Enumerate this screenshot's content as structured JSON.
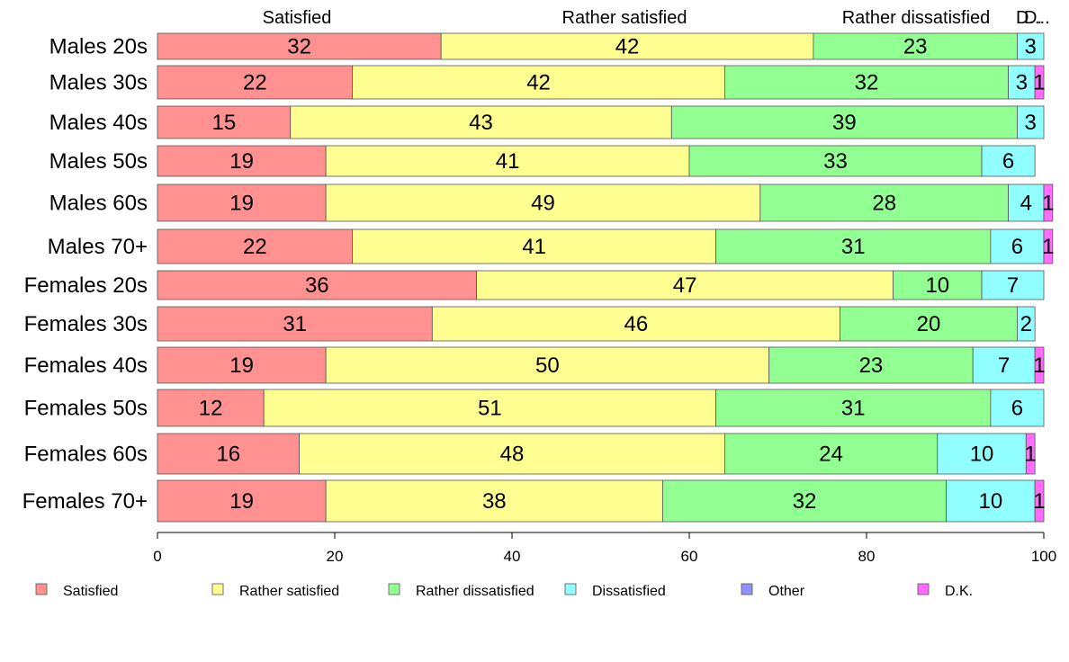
{
  "chart_data": {
    "type": "bar",
    "orientation": "horizontal",
    "stacked": true,
    "title": "",
    "xlabel": "",
    "ylabel": "",
    "xlim": [
      0,
      100
    ],
    "x_ticks": [
      0,
      20,
      40,
      60,
      80,
      100
    ],
    "grid": false,
    "legend_position": "bottom",
    "top_labels": [
      "Satisfied",
      "Rather satisfied",
      "Rather dissatisfied",
      "D.",
      "D.",
      "..."
    ],
    "categories": [
      "Males 20s",
      "Males 30s",
      "Males 40s",
      "Males 50s",
      "Males 60s",
      "Males 70+",
      "Females 20s",
      "Females 30s",
      "Females 40s",
      "Females 50s",
      "Females 60s",
      "Females 70+"
    ],
    "series": [
      {
        "name": "Satisfied",
        "color": "#FF9191",
        "values": [
          32,
          22,
          15,
          19,
          19,
          22,
          36,
          31,
          19,
          12,
          16,
          19
        ],
        "display_labels": [
          "32",
          "22",
          "15",
          "19",
          "19",
          "22",
          "36",
          "31",
          "19",
          "12",
          "16",
          "19"
        ]
      },
      {
        "name": "Rather satisfied",
        "color": "#FFFF91",
        "values": [
          42,
          42,
          43,
          41,
          49,
          41,
          47,
          46,
          50,
          51,
          48,
          38
        ],
        "display_labels": [
          "42",
          "42",
          "43",
          "41",
          "49",
          "41",
          "47",
          "46",
          "50",
          "51",
          "48",
          "38"
        ]
      },
      {
        "name": "Rather dissatisfied",
        "color": "#91FF91",
        "values": [
          23,
          32,
          39,
          33,
          28,
          31,
          10,
          20,
          23,
          31,
          24,
          32
        ],
        "display_labels": [
          "23",
          "32",
          "39",
          "33",
          "28",
          "31",
          "10",
          "20",
          "23",
          "31",
          "24",
          "32"
        ]
      },
      {
        "name": "Dissatisfied",
        "color": "#91FFFF",
        "values": [
          3,
          3,
          3,
          6,
          4,
          6,
          7,
          2,
          7,
          6,
          10,
          10
        ],
        "display_labels": [
          "3",
          "3",
          "3",
          "6",
          "4",
          "6",
          "7",
          "2",
          "7",
          "6",
          "10",
          "10"
        ]
      },
      {
        "name": "Other",
        "color": "#9191FF",
        "values": [
          0,
          0,
          0,
          0,
          0,
          0,
          0,
          0,
          0,
          0,
          0,
          0
        ],
        "display_labels": [
          "",
          "",
          "",
          "",
          "",
          "",
          "",
          "",
          "",
          "",
          "",
          ""
        ]
      },
      {
        "name": "D.K.",
        "color": "#FF6BFF",
        "values": [
          0,
          1,
          0,
          0,
          1,
          1,
          0,
          0,
          1,
          0,
          1,
          1
        ],
        "display_labels": [
          "",
          "1",
          "",
          "",
          "1",
          "1",
          "",
          "",
          "1",
          "",
          "1",
          "1"
        ]
      }
    ]
  }
}
